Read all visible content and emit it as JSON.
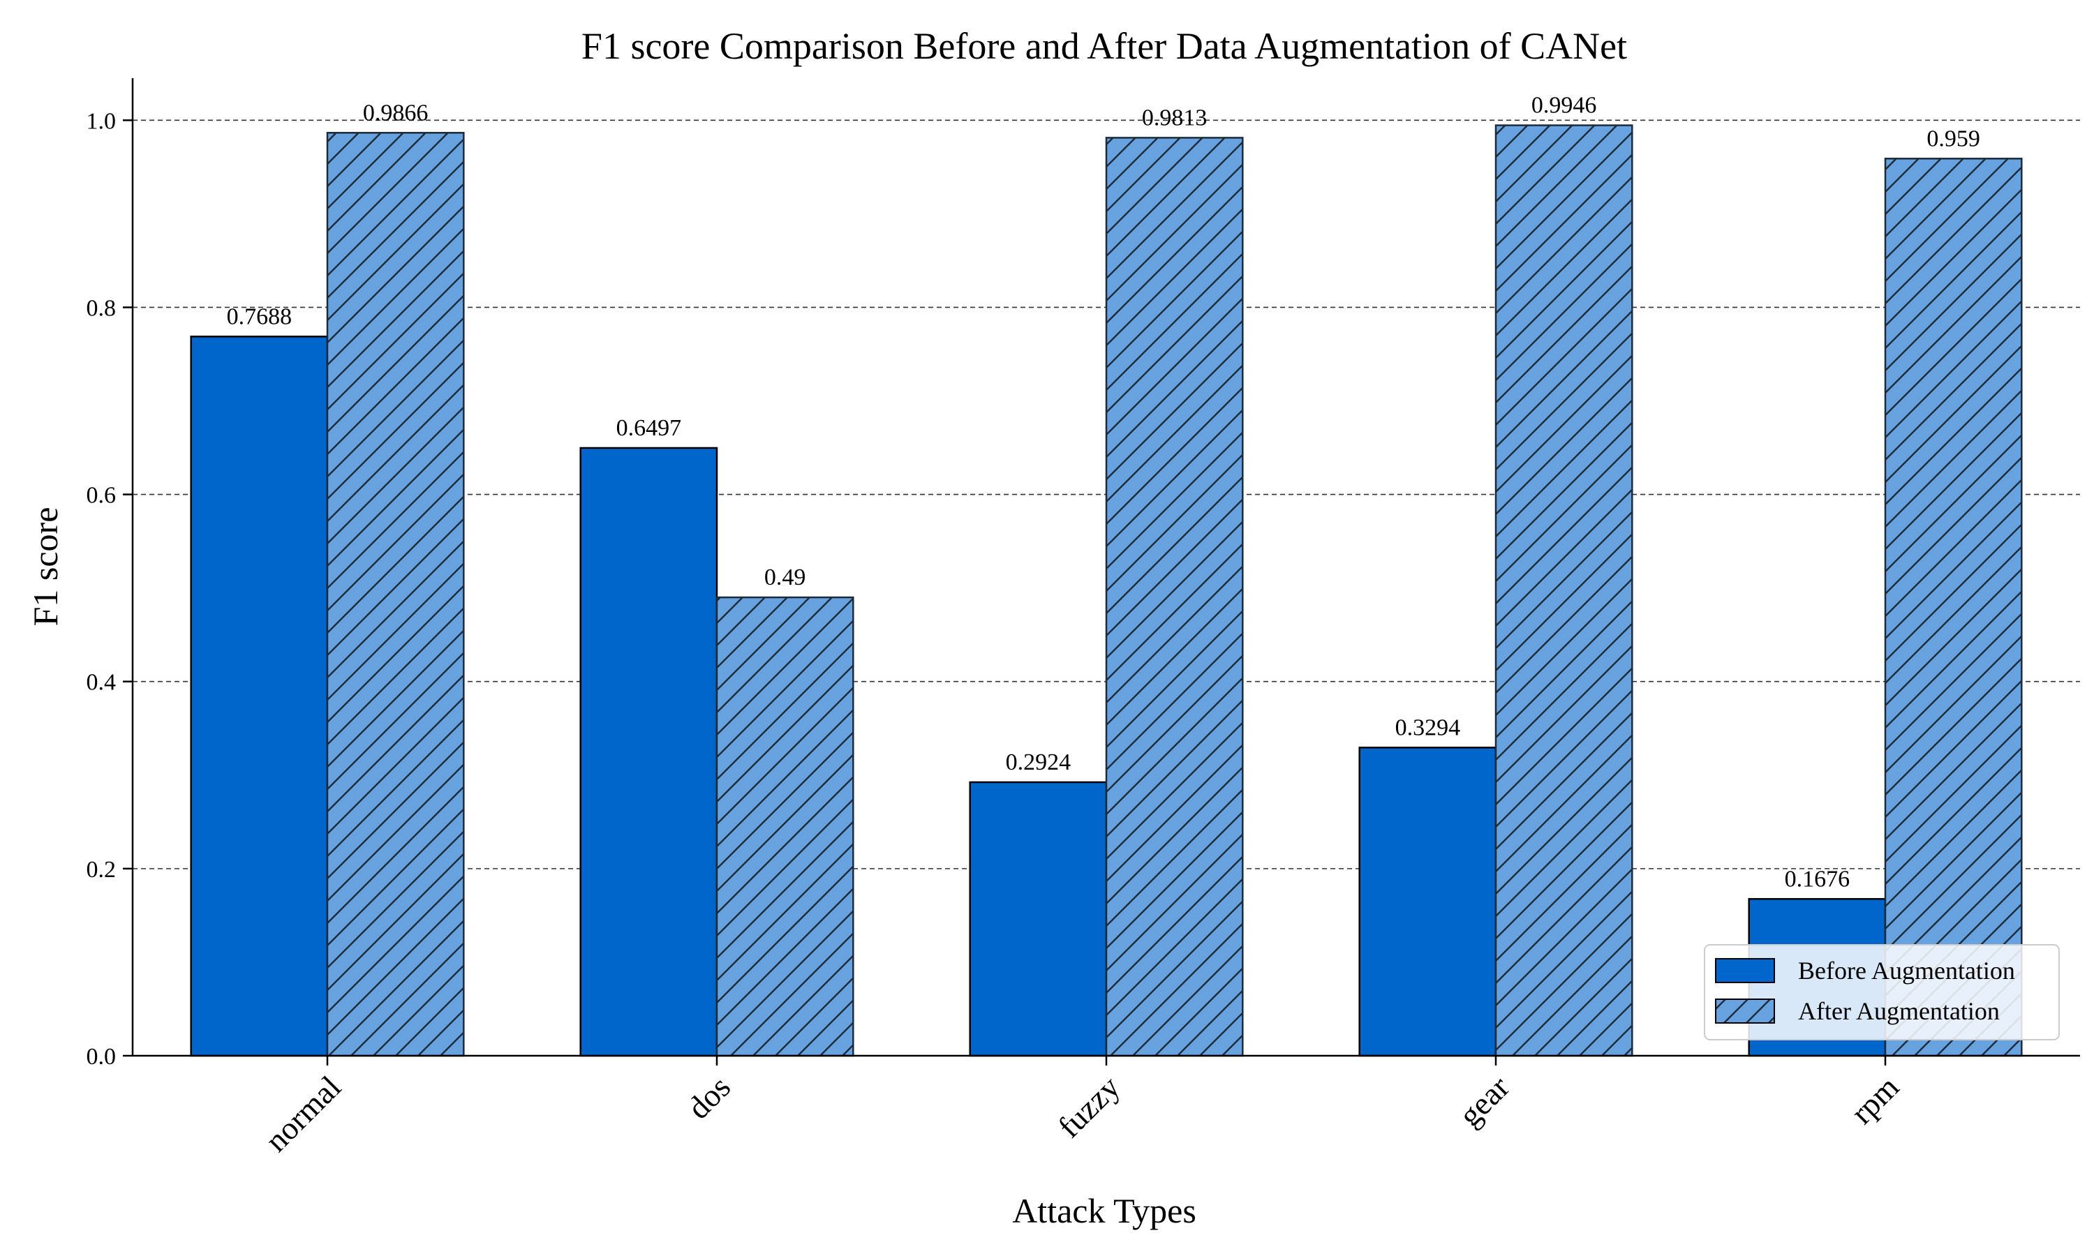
{
  "chart_data": {
    "type": "bar",
    "title": "F1 score Comparison Before and After Data Augmentation of CANet",
    "xlabel": "Attack Types",
    "ylabel": "F1 score",
    "categories": [
      "normal",
      "dos",
      "fuzzy",
      "gear",
      "rpm"
    ],
    "series": [
      {
        "name": "Before Augmentation",
        "values": [
          0.7688,
          0.6497,
          0.2924,
          0.3294,
          0.1676
        ],
        "labels": [
          "0.7688",
          "0.6497",
          "0.2924",
          "0.3294",
          "0.1676"
        ],
        "color": "#0066cc",
        "hatch": "none"
      },
      {
        "name": "After Augmentation",
        "values": [
          0.9866,
          0.49,
          0.9813,
          0.9946,
          0.959
        ],
        "labels": [
          "0.9866",
          "0.49",
          "0.9813",
          "0.9946",
          "0.959"
        ],
        "color": "#66a3e0",
        "hatch": "diagonal"
      }
    ],
    "ylim": [
      0,
      1.045
    ],
    "yticks": [
      "0.0",
      "0.2",
      "0.4",
      "0.6",
      "0.8",
      "1.0"
    ],
    "grid": true,
    "legend_position": "bottom-right"
  }
}
